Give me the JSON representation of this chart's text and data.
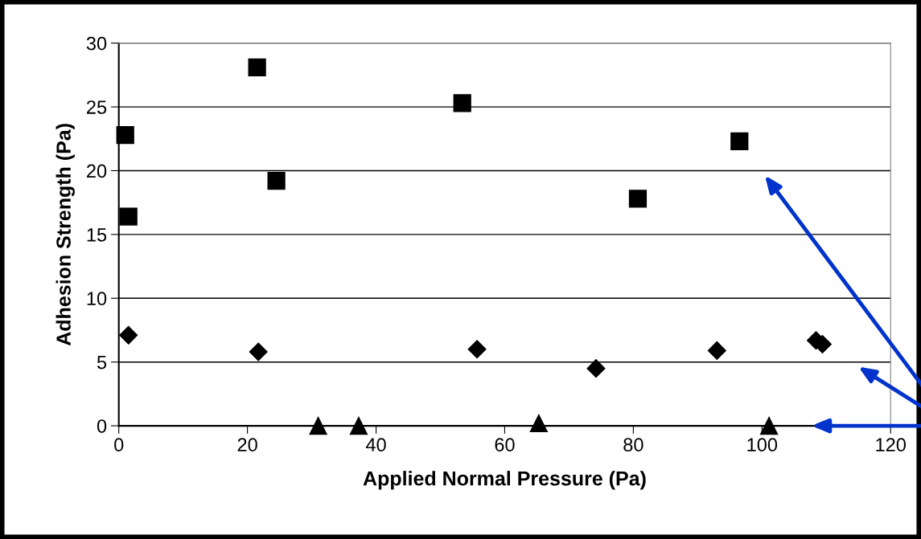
{
  "chart_data": {
    "type": "scatter",
    "xlabel": "Applied Normal Pressure (Pa)",
    "ylabel": "Adhesion Strength (Pa)",
    "xlim": [
      0,
      120
    ],
    "xticks": [
      0,
      20,
      40,
      60,
      80,
      100,
      120
    ],
    "ylim": [
      0,
      30
    ],
    "yticks": [
      0,
      5,
      10,
      15,
      20,
      25,
      30
    ],
    "grid": "y",
    "legend": false,
    "series": [
      {
        "color": "#000000",
        "marker": "square",
        "x": [
          1.0,
          1.5,
          21.5,
          24.5,
          53.4,
          80.7,
          96.5
        ],
        "values": [
          22.8,
          16.4,
          28.1,
          19.2,
          25.3,
          17.8,
          22.3
        ]
      },
      {
        "color": "#000000",
        "marker": "diamond",
        "x": [
          1.5,
          21.7,
          55.7,
          74.2,
          93.0,
          108.4,
          109.4
        ],
        "values": [
          7.1,
          5.8,
          6.0,
          4.5,
          5.9,
          6.7,
          6.4
        ]
      },
      {
        "color": "#000000",
        "marker": "triangle",
        "x": [
          31.0,
          37.3,
          65.3,
          101.1
        ],
        "values": [
          0,
          0,
          0.2,
          0
        ]
      }
    ]
  }
}
